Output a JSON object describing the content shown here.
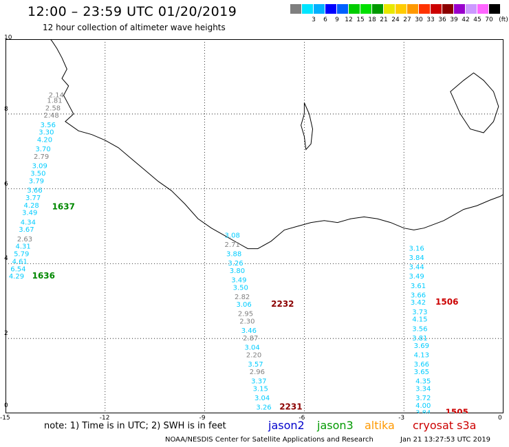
{
  "header": {
    "title": "12:00 – 23:59 UTC 01/20/2019",
    "subtitle": "12 hour collection of altimeter wave heights"
  },
  "legend": {
    "unit": "(ft)",
    "swatches": [
      {
        "color": "#7f7f7f",
        "label": ""
      },
      {
        "color": "#00e5ff",
        "label": "3"
      },
      {
        "color": "#00b0ff",
        "label": "6"
      },
      {
        "color": "#0000ff",
        "label": "9"
      },
      {
        "color": "#0060ff",
        "label": "12"
      },
      {
        "color": "#00cc00",
        "label": "15"
      },
      {
        "color": "#00e000",
        "label": "18"
      },
      {
        "color": "#009900",
        "label": "21"
      },
      {
        "color": "#e8e800",
        "label": "24"
      },
      {
        "color": "#ffcc00",
        "label": "27"
      },
      {
        "color": "#ff9900",
        "label": "30"
      },
      {
        "color": "#ff3300",
        "label": "33"
      },
      {
        "color": "#cc0000",
        "label": "36"
      },
      {
        "color": "#8b0000",
        "label": "39"
      },
      {
        "color": "#9900cc",
        "label": "42"
      },
      {
        "color": "#cc99ff",
        "label": "45"
      },
      {
        "color": "#ff66ff",
        "label": "70"
      },
      {
        "color": "#000000",
        "label": ""
      }
    ]
  },
  "axes": {
    "x_ticks": [
      "-15",
      "-12",
      "-9",
      "-6",
      "-3",
      "0"
    ],
    "y_ticks": [
      "0",
      "2",
      "4",
      "6",
      "8",
      "10"
    ],
    "x_range": [
      -15,
      0
    ],
    "y_range": [
      0,
      10
    ]
  },
  "tracks": [
    {
      "id": "track-west",
      "points": [
        {
          "lon": -13.7,
          "lat": 8.45,
          "v": "2.14",
          "c": "#808080"
        },
        {
          "lon": -13.75,
          "lat": 8.3,
          "v": "1.81",
          "c": "#808080"
        },
        {
          "lon": -13.8,
          "lat": 8.1,
          "v": "2.58",
          "c": "#808080"
        },
        {
          "lon": -13.85,
          "lat": 7.9,
          "v": "2.48",
          "c": "#808080"
        },
        {
          "lon": -13.95,
          "lat": 7.65,
          "v": "3.56",
          "c": "#00ccff"
        },
        {
          "lon": -14.0,
          "lat": 7.45,
          "v": "3.30",
          "c": "#00ccff"
        },
        {
          "lon": -14.05,
          "lat": 7.25,
          "v": "4.20",
          "c": "#00ccff"
        },
        {
          "lon": -14.1,
          "lat": 7.0,
          "v": "3.70",
          "c": "#00ccff"
        },
        {
          "lon": -14.15,
          "lat": 6.8,
          "v": "2.79",
          "c": "#808080"
        },
        {
          "lon": -14.2,
          "lat": 6.55,
          "v": "3.09",
          "c": "#00ccff"
        },
        {
          "lon": -14.25,
          "lat": 6.35,
          "v": "3.50",
          "c": "#00ccff"
        },
        {
          "lon": -14.3,
          "lat": 6.15,
          "v": "3.79",
          "c": "#00ccff"
        },
        {
          "lon": -14.35,
          "lat": 5.9,
          "v": "3.66",
          "c": "#00ccff"
        },
        {
          "lon": -14.4,
          "lat": 5.7,
          "v": "3.77",
          "c": "#00ccff"
        },
        {
          "lon": -14.45,
          "lat": 5.5,
          "v": "4.28",
          "c": "#00ccff"
        },
        {
          "lon": -14.5,
          "lat": 5.3,
          "v": "3.49",
          "c": "#00ccff"
        },
        {
          "lon": -14.55,
          "lat": 5.05,
          "v": "4.34",
          "c": "#00ccff"
        },
        {
          "lon": -14.6,
          "lat": 4.85,
          "v": "3.67",
          "c": "#00ccff"
        },
        {
          "lon": -14.65,
          "lat": 4.6,
          "v": "2.63",
          "c": "#808080"
        },
        {
          "lon": -14.7,
          "lat": 4.4,
          "v": "4.31",
          "c": "#00ccff"
        },
        {
          "lon": -14.75,
          "lat": 4.2,
          "v": "5.79",
          "c": "#00ccff"
        },
        {
          "lon": -14.8,
          "lat": 4.0,
          "v": "4.61",
          "c": "#00ccff"
        },
        {
          "lon": -14.85,
          "lat": 3.8,
          "v": "6.54",
          "c": "#00ccff"
        },
        {
          "lon": -14.9,
          "lat": 3.6,
          "v": "4.29",
          "c": "#00ccff"
        }
      ],
      "times": [
        {
          "lon": -13.6,
          "lat": 5.45,
          "t": "1637",
          "c": "#008800"
        },
        {
          "lon": -14.2,
          "lat": 3.6,
          "t": "1636",
          "c": "#008800"
        }
      ]
    },
    {
      "id": "track-center",
      "points": [
        {
          "lon": -8.4,
          "lat": 4.7,
          "v": "3.08",
          "c": "#00ccff"
        },
        {
          "lon": -8.4,
          "lat": 4.45,
          "v": "2.71",
          "c": "#808080"
        },
        {
          "lon": -8.35,
          "lat": 4.2,
          "v": "3.88",
          "c": "#00ccff"
        },
        {
          "lon": -8.3,
          "lat": 3.95,
          "v": "3.26",
          "c": "#00ccff"
        },
        {
          "lon": -8.25,
          "lat": 3.75,
          "v": "3.80",
          "c": "#00ccff"
        },
        {
          "lon": -8.2,
          "lat": 3.5,
          "v": "3.49",
          "c": "#00ccff"
        },
        {
          "lon": -8.15,
          "lat": 3.3,
          "v": "3.50",
          "c": "#00ccff"
        },
        {
          "lon": -8.1,
          "lat": 3.05,
          "v": "2.82",
          "c": "#808080"
        },
        {
          "lon": -8.05,
          "lat": 2.85,
          "v": "3.06",
          "c": "#00ccff"
        },
        {
          "lon": -8.0,
          "lat": 2.6,
          "v": "2.95",
          "c": "#808080"
        },
        {
          "lon": -7.95,
          "lat": 2.4,
          "v": "2.30",
          "c": "#808080"
        },
        {
          "lon": -7.9,
          "lat": 2.15,
          "v": "3.46",
          "c": "#00ccff"
        },
        {
          "lon": -7.85,
          "lat": 1.95,
          "v": "2.87",
          "c": "#808080"
        },
        {
          "lon": -7.8,
          "lat": 1.7,
          "v": "3.04",
          "c": "#00ccff"
        },
        {
          "lon": -7.75,
          "lat": 1.5,
          "v": "2.20",
          "c": "#808080"
        },
        {
          "lon": -7.7,
          "lat": 1.25,
          "v": "3.57",
          "c": "#00ccff"
        },
        {
          "lon": -7.65,
          "lat": 1.05,
          "v": "2.96",
          "c": "#808080"
        },
        {
          "lon": -7.6,
          "lat": 0.8,
          "v": "3.37",
          "c": "#00ccff"
        },
        {
          "lon": -7.55,
          "lat": 0.6,
          "v": "3.15",
          "c": "#00ccff"
        },
        {
          "lon": -7.5,
          "lat": 0.35,
          "v": "3.04",
          "c": "#00ccff"
        },
        {
          "lon": -7.45,
          "lat": 0.1,
          "v": "3.26",
          "c": "#00ccff"
        }
      ],
      "times": [
        {
          "lon": -7.0,
          "lat": 2.85,
          "t": "2232",
          "c": "#8b0000"
        },
        {
          "lon": -6.75,
          "lat": 0.1,
          "t": "2231",
          "c": "#8b0000"
        }
      ]
    },
    {
      "id": "track-east",
      "points": [
        {
          "lon": -2.85,
          "lat": 4.35,
          "v": "3.16",
          "c": "#00ccff"
        },
        {
          "lon": -2.85,
          "lat": 4.1,
          "v": "3.84",
          "c": "#00ccff"
        },
        {
          "lon": -2.85,
          "lat": 3.85,
          "v": "3.44",
          "c": "#00ccff"
        },
        {
          "lon": -2.85,
          "lat": 3.6,
          "v": "3.49",
          "c": "#00ccff"
        },
        {
          "lon": -2.8,
          "lat": 3.35,
          "v": "3.61",
          "c": "#00ccff"
        },
        {
          "lon": -2.8,
          "lat": 3.1,
          "v": "3.66",
          "c": "#00ccff"
        },
        {
          "lon": -2.8,
          "lat": 2.9,
          "v": "3.42",
          "c": "#00ccff"
        },
        {
          "lon": -2.75,
          "lat": 2.65,
          "v": "3.73",
          "c": "#00ccff"
        },
        {
          "lon": -2.75,
          "lat": 2.45,
          "v": "4.15",
          "c": "#00ccff"
        },
        {
          "lon": -2.75,
          "lat": 2.2,
          "v": "3.56",
          "c": "#00ccff"
        },
        {
          "lon": -2.75,
          "lat": 1.95,
          "v": "3.81",
          "c": "#00ccff"
        },
        {
          "lon": -2.7,
          "lat": 1.75,
          "v": "3.69",
          "c": "#00ccff"
        },
        {
          "lon": -2.7,
          "lat": 1.5,
          "v": "4.13",
          "c": "#00ccff"
        },
        {
          "lon": -2.7,
          "lat": 1.25,
          "v": "3.66",
          "c": "#00ccff"
        },
        {
          "lon": -2.7,
          "lat": 1.05,
          "v": "3.65",
          "c": "#00ccff"
        },
        {
          "lon": -2.65,
          "lat": 0.8,
          "v": "4.35",
          "c": "#00ccff"
        },
        {
          "lon": -2.65,
          "lat": 0.6,
          "v": "3.34",
          "c": "#00ccff"
        },
        {
          "lon": -2.65,
          "lat": 0.35,
          "v": "3.72",
          "c": "#00ccff"
        },
        {
          "lon": -2.65,
          "lat": 0.15,
          "v": "4.00",
          "c": "#00ccff"
        },
        {
          "lon": -2.65,
          "lat": -0.05,
          "v": "3.84",
          "c": "#00ccff"
        }
      ],
      "times": [
        {
          "lon": -2.05,
          "lat": 2.9,
          "t": "1506",
          "c": "#cc0000"
        },
        {
          "lon": -1.75,
          "lat": -0.05,
          "t": "1505",
          "c": "#cc0000"
        }
      ]
    }
  ],
  "coast_points": [
    [
      -13.85,
      10.2
    ],
    [
      -13.6,
      9.95
    ],
    [
      -13.45,
      9.75
    ],
    [
      -13.3,
      9.5
    ],
    [
      -13.15,
      9.2
    ],
    [
      -13.3,
      8.95
    ],
    [
      -13.1,
      8.75
    ],
    [
      -13.25,
      8.5
    ],
    [
      -13.1,
      8.25
    ],
    [
      -12.95,
      8.0
    ],
    [
      -13.2,
      7.8
    ],
    [
      -12.8,
      7.55
    ],
    [
      -12.4,
      7.45
    ],
    [
      -12.0,
      7.3
    ],
    [
      -11.6,
      7.1
    ],
    [
      -11.2,
      6.8
    ],
    [
      -10.8,
      6.5
    ],
    [
      -10.4,
      6.2
    ],
    [
      -10.0,
      5.95
    ],
    [
      -9.6,
      5.6
    ],
    [
      -9.2,
      5.2
    ],
    [
      -8.8,
      4.95
    ],
    [
      -8.4,
      4.75
    ],
    [
      -8.0,
      4.55
    ],
    [
      -7.7,
      4.4
    ],
    [
      -7.4,
      4.4
    ],
    [
      -7.0,
      4.6
    ],
    [
      -6.6,
      4.9
    ],
    [
      -6.2,
      5.0
    ],
    [
      -5.8,
      5.1
    ],
    [
      -5.4,
      5.15
    ],
    [
      -5.0,
      5.1
    ],
    [
      -4.6,
      5.2
    ],
    [
      -4.2,
      5.25
    ],
    [
      -3.8,
      5.2
    ],
    [
      -3.4,
      5.1
    ],
    [
      -3.0,
      4.95
    ],
    [
      -2.7,
      4.9
    ],
    [
      -2.4,
      4.95
    ],
    [
      -2.1,
      5.05
    ],
    [
      -1.8,
      5.15
    ],
    [
      -1.5,
      5.3
    ],
    [
      -1.2,
      5.45
    ],
    [
      -0.8,
      5.55
    ],
    [
      -0.4,
      5.7
    ],
    [
      -0.1,
      5.8
    ],
    [
      0.1,
      5.9
    ]
  ],
  "lakes": [
    [
      [
        -6.0,
        8.3
      ],
      [
        -5.85,
        8.0
      ],
      [
        -5.75,
        7.6
      ],
      [
        -5.8,
        7.2
      ],
      [
        -5.95,
        7.05
      ],
      [
        -6.0,
        7.4
      ],
      [
        -6.1,
        7.7
      ],
      [
        -6.0,
        8.0
      ]
    ],
    [
      [
        -1.6,
        8.6
      ],
      [
        -1.2,
        8.9
      ],
      [
        -0.9,
        9.1
      ],
      [
        -0.6,
        8.9
      ],
      [
        -0.3,
        8.6
      ],
      [
        -0.15,
        8.2
      ],
      [
        -0.3,
        7.8
      ],
      [
        -0.6,
        7.5
      ],
      [
        -1.0,
        7.6
      ],
      [
        -1.3,
        8.0
      ]
    ]
  ],
  "footer": {
    "note": "note:  1) Time is in UTC;  2) SWH is in feet",
    "satellites": [
      {
        "name": "jason2",
        "color": "#0000cc"
      },
      {
        "name": "jason3",
        "color": "#009900"
      },
      {
        "name": "altika",
        "color": "#ff9900"
      },
      {
        "name": "cryosat s3a",
        "color": "#cc0000"
      }
    ],
    "credit": "NOAA/NESDIS Center for Satellite Applications and Research",
    "timestamp": "Jan 21 13:27:53 UTC 2019"
  }
}
